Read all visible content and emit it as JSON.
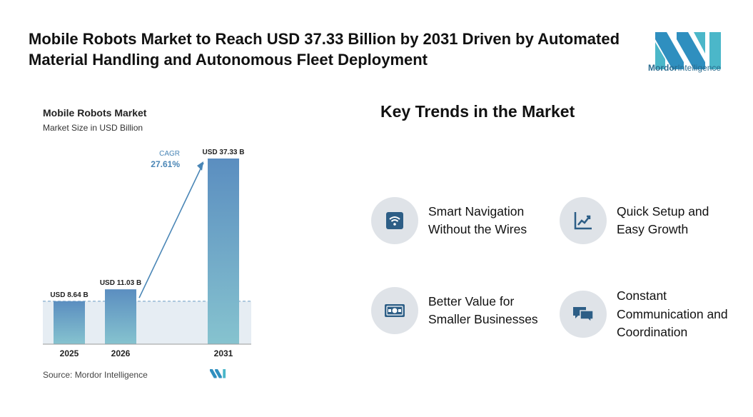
{
  "headline": "Mobile Robots Market to Reach USD 37.33 Billion by 2031 Driven by Automated Material Handling and Autonomous Fleet Deployment",
  "logo": {
    "brand": "Mordor",
    "brand2": "Intelligence"
  },
  "colors": {
    "bar_top": "#5b8ec0",
    "bar_bottom": "#86c3cf",
    "accent": "#4a86b6",
    "icon_bg": "#dfe3e8",
    "icon_fg": "#2d5e86"
  },
  "chart_data": {
    "type": "bar",
    "title": "Mobile Robots Market",
    "subtitle": "Market Size in USD Billion",
    "categories": [
      "2025",
      "2026",
      "2031"
    ],
    "values": [
      8.64,
      11.03,
      37.33
    ],
    "data_labels": [
      "USD 8.64 B",
      "USD 11.03 B",
      "USD 37.33 B"
    ],
    "cagr_label": "CAGR",
    "cagr_value": "27.61%",
    "source": "Source: Mordor Intelligence",
    "ylim": [
      0,
      40
    ]
  },
  "trends": {
    "title": "Key Trends in the Market",
    "items": [
      {
        "label": "Smart Navigation Without the Wires",
        "icon": "wifi-icon"
      },
      {
        "label": "Quick Setup and Easy Growth",
        "icon": "growth-chart-icon"
      },
      {
        "label": "Better Value for Smaller Businesses",
        "icon": "money-icon"
      },
      {
        "label": "Constant Communication and Coordination",
        "icon": "chat-bubbles-icon"
      }
    ]
  }
}
